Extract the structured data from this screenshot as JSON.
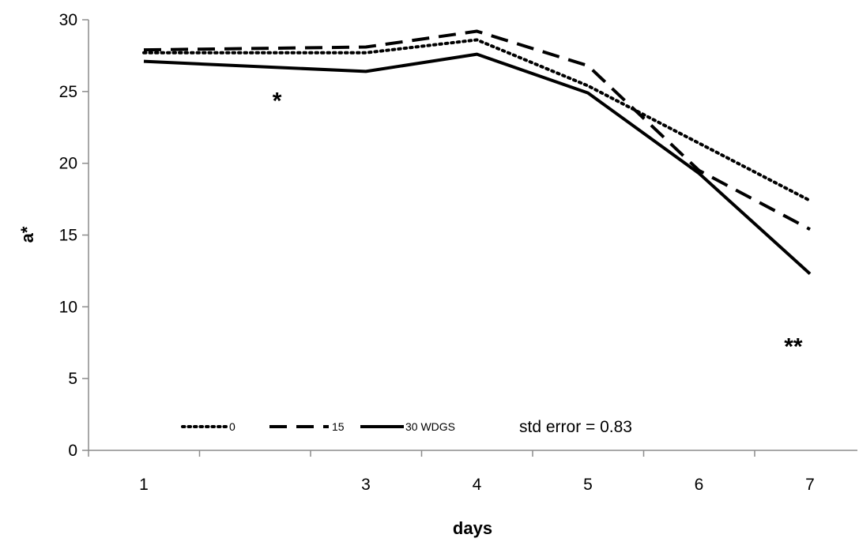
{
  "chart_data": {
    "type": "line",
    "xlabel": "days",
    "ylabel": "a*",
    "x": [
      1,
      3,
      4,
      5,
      6,
      7
    ],
    "ylim": [
      0,
      30
    ],
    "yticks": [
      0,
      5,
      10,
      15,
      20,
      25,
      30
    ],
    "series": [
      {
        "name": "0",
        "style": "dotted",
        "values": [
          27.7,
          27.7,
          28.6,
          25.4,
          21.4,
          17.4
        ]
      },
      {
        "name": "15",
        "style": "dashed",
        "values": [
          27.9,
          28.1,
          29.2,
          26.8,
          19.5,
          15.4
        ]
      },
      {
        "name": "30 WDGS",
        "style": "solid",
        "values": [
          27.1,
          26.4,
          27.6,
          24.9,
          19.3,
          12.3
        ]
      }
    ],
    "legend_note": "std error = 0.83",
    "legend_position": "bottom",
    "grid": false,
    "color": "#000000",
    "annotations": [
      {
        "text": "*",
        "x": 2.2,
        "y": 23.8
      },
      {
        "text": "**",
        "x": 6.85,
        "y": 6.7
      }
    ]
  }
}
